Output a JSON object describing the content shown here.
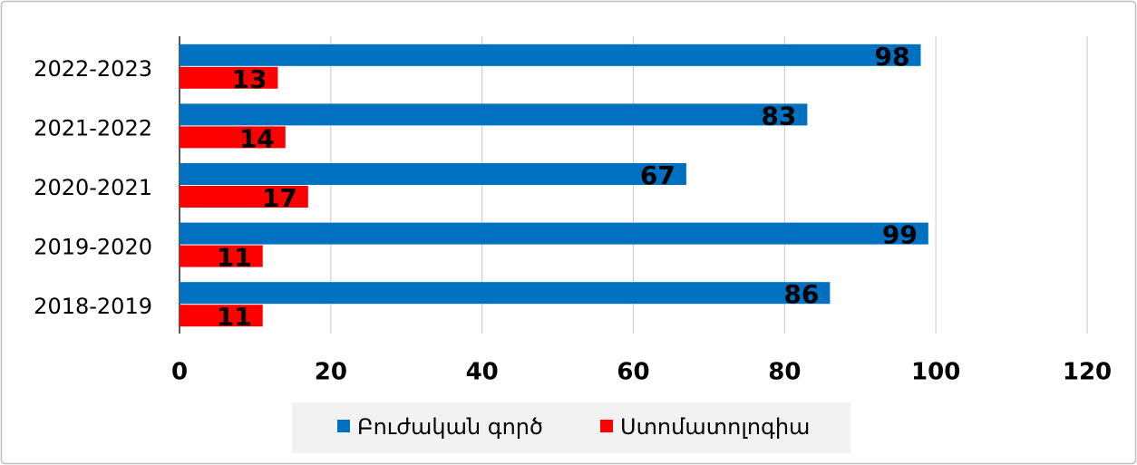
{
  "chart_data": {
    "type": "bar",
    "orientation": "horizontal",
    "categories": [
      "2022-2023",
      "2021-2022",
      "2020-2021",
      "2019-2020",
      "2018-2019"
    ],
    "series": [
      {
        "name": "Բուժական գործ",
        "color": "#0070c0",
        "values": [
          98,
          83,
          67,
          99,
          86
        ]
      },
      {
        "name": "Ստոմատոլոգիա",
        "color": "#ff0000",
        "values": [
          13,
          14,
          17,
          11,
          11
        ]
      }
    ],
    "xlim": [
      0,
      120
    ],
    "xticks": [
      0,
      20,
      40,
      60,
      80,
      100,
      120
    ],
    "grid": true,
    "legend": "bottom"
  }
}
